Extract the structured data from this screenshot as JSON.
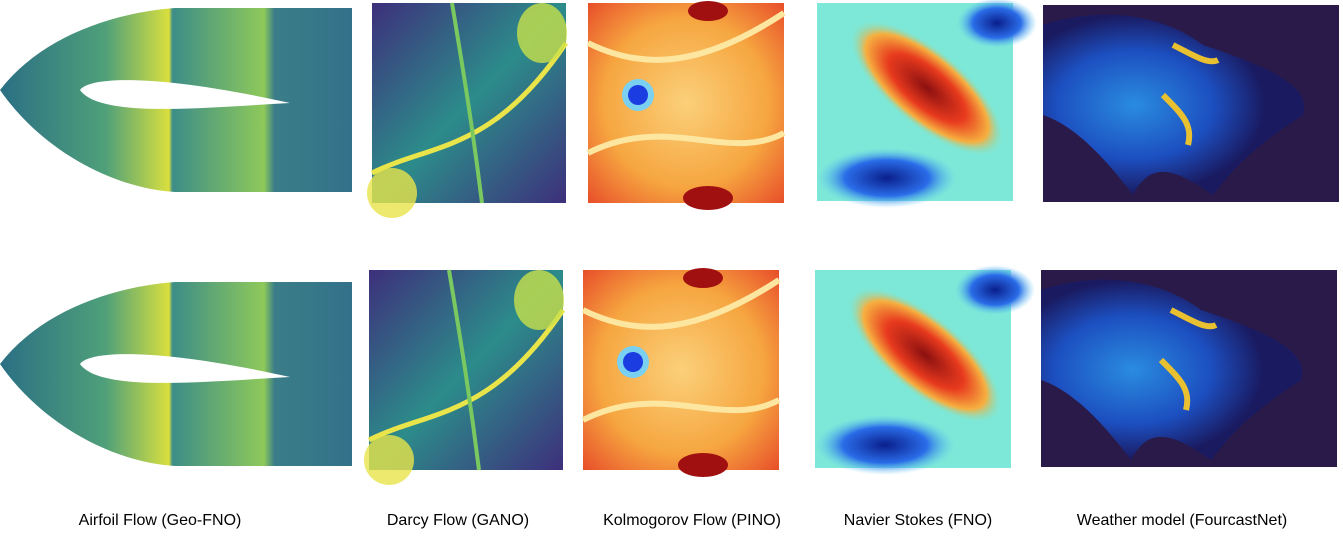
{
  "captions": [
    "Airfoil Flow (Geo-FNO)",
    "Darcy Flow (GANO)",
    "Kolmogorov Flow (PINO)",
    "Navier Stokes (FNO)",
    "Weather model (FourcastNet)"
  ]
}
